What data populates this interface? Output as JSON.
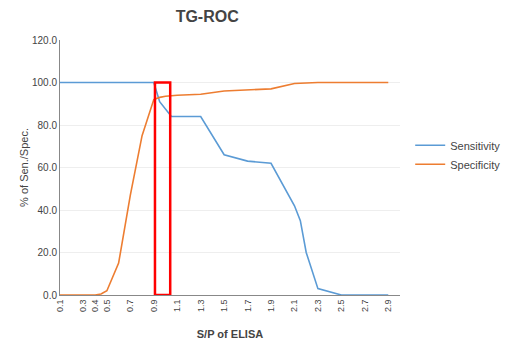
{
  "chart_data": {
    "type": "line",
    "title": "TG-ROC",
    "xlabel": "S/P of ELISA",
    "ylabel": "% of Sen./Spec.",
    "xlim": [
      0.1,
      3.0
    ],
    "ylim": [
      0.0,
      120.0
    ],
    "xticks": [
      0.1,
      0.3,
      0.4,
      0.5,
      0.7,
      0.9,
      1.1,
      1.3,
      1.5,
      1.7,
      1.9,
      2.1,
      2.3,
      2.5,
      2.7,
      2.9
    ],
    "yticks": [
      {
        "value": 0.0,
        "label": "0.0"
      },
      {
        "value": 20.0,
        "label": "20.0"
      },
      {
        "value": 40.0,
        "label": "40.0"
      },
      {
        "value": 60.0,
        "label": "60.0"
      },
      {
        "value": 80.0,
        "label": "80.0"
      },
      {
        "value": 100.0,
        "label": "100.0"
      },
      {
        "value": 120.0,
        "label": "120.0"
      }
    ],
    "series": [
      {
        "name": "Sensitivity",
        "color": "#5B9BD5",
        "x": [
          0.1,
          0.3,
          0.4,
          0.5,
          0.7,
          0.9,
          0.95,
          1.05,
          1.1,
          1.3,
          1.5,
          1.7,
          1.9,
          2.1,
          2.15,
          2.2,
          2.3,
          2.5,
          2.7,
          2.9
        ],
        "values": [
          100.0,
          100.0,
          100.0,
          100.0,
          100.0,
          100.0,
          91.0,
          84.0,
          84.0,
          84.0,
          66.0,
          63.0,
          62.0,
          42.0,
          35.0,
          20.0,
          3.0,
          0.0,
          0.0,
          0.0
        ]
      },
      {
        "name": "Specificity",
        "color": "#ED7D31",
        "x": [
          0.1,
          0.3,
          0.4,
          0.45,
          0.5,
          0.6,
          0.7,
          0.8,
          0.9,
          0.95,
          1.0,
          1.1,
          1.3,
          1.5,
          1.7,
          1.9,
          2.1,
          2.3,
          2.5,
          2.7,
          2.9
        ],
        "values": [
          0.0,
          0.0,
          0.0,
          0.5,
          2.0,
          15.0,
          47.0,
          75.0,
          92.0,
          93.0,
          93.5,
          94.0,
          94.5,
          96.0,
          96.5,
          97.0,
          99.5,
          100.0,
          100.0,
          100.0,
          100.0
        ]
      }
    ],
    "highlight": {
      "x": [
        0.91,
        1.04
      ],
      "y": [
        0.0,
        100.0
      ],
      "color": "red"
    },
    "grid": "y",
    "legend": "right"
  }
}
